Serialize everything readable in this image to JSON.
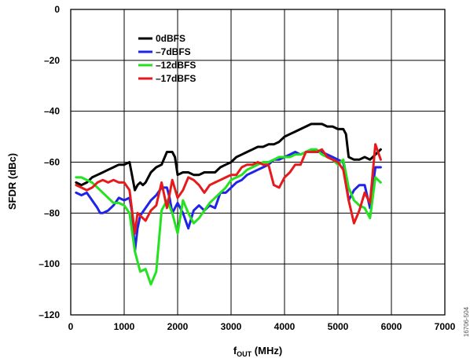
{
  "chart_data": {
    "type": "line",
    "xlabel": "f",
    "xlabel_sub": "OUT",
    "xlabel_unit": " (MHz)",
    "ylabel": "SFDR (dBc)",
    "xlim": [
      0,
      7000
    ],
    "ylim": [
      -120,
      0
    ],
    "xticks": [
      0,
      1000,
      2000,
      3000,
      4000,
      5000,
      6000,
      7000
    ],
    "yticks": [
      0,
      -20,
      -40,
      -60,
      -80,
      -100,
      -120
    ],
    "ytick_labels": [
      "0",
      "–20",
      "–40",
      "–60",
      "–80",
      "–100",
      "–120"
    ],
    "grid": true,
    "legend_position": "top-left",
    "figure_code": "16706-504",
    "series": [
      {
        "name": "0dBFS",
        "color": "#000000",
        "x": [
          100,
          200,
          300,
          400,
          500,
          600,
          700,
          800,
          900,
          1000,
          1100,
          1200,
          1250,
          1300,
          1350,
          1400,
          1500,
          1600,
          1700,
          1800,
          1900,
          1950,
          2000,
          2100,
          2200,
          2300,
          2400,
          2500,
          2600,
          2700,
          2800,
          2900,
          3000,
          3100,
          3200,
          3300,
          3400,
          3500,
          3600,
          3700,
          3800,
          3900,
          4000,
          4100,
          4200,
          4300,
          4400,
          4500,
          4600,
          4700,
          4800,
          4900,
          5000,
          5100,
          5150,
          5200,
          5300,
          5400,
          5500,
          5600,
          5700,
          5800
        ],
        "y": [
          -68,
          -69,
          -68,
          -66,
          -65,
          -64,
          -63,
          -62,
          -61,
          -61,
          -60,
          -71,
          -69,
          -68,
          -69,
          -68,
          -64,
          -62,
          -61,
          -56,
          -56,
          -58,
          -65,
          -64,
          -64,
          -65,
          -65,
          -64,
          -64,
          -64,
          -62,
          -61,
          -60,
          -58,
          -57,
          -56,
          -55,
          -54,
          -54,
          -53,
          -53,
          -52,
          -50,
          -49,
          -48,
          -47,
          -46,
          -45,
          -45,
          -45,
          -46,
          -46,
          -47,
          -47,
          -49,
          -58,
          -59,
          -59,
          -58,
          -59,
          -57,
          -55
        ]
      },
      {
        "name": "–7dBFS",
        "color": "#1f24e6",
        "x": [
          100,
          200,
          300,
          400,
          500,
          550,
          600,
          700,
          800,
          900,
          1000,
          1100,
          1150,
          1200,
          1250,
          1300,
          1400,
          1500,
          1600,
          1700,
          1800,
          1850,
          1900,
          2000,
          2100,
          2200,
          2300,
          2400,
          2500,
          2600,
          2700,
          2800,
          2900,
          3000,
          3100,
          3200,
          3300,
          3400,
          3500,
          3600,
          3700,
          3800,
          3900,
          4000,
          4100,
          4200,
          4300,
          4400,
          4500,
          4600,
          4700,
          4800,
          4900,
          5000,
          5100,
          5200,
          5300,
          5400,
          5500,
          5600,
          5700,
          5800
        ],
        "y": [
          -72,
          -73,
          -72,
          -75,
          -78,
          -80,
          -80,
          -79,
          -77,
          -74,
          -75,
          -74,
          -80,
          -95,
          -86,
          -81,
          -78,
          -75,
          -73,
          -70,
          -70,
          -74,
          -80,
          -76,
          -80,
          -86,
          -79,
          -77,
          -79,
          -77,
          -78,
          -72,
          -72,
          -70,
          -68,
          -67,
          -65,
          -64,
          -63,
          -62,
          -61,
          -59,
          -59,
          -58,
          -57,
          -56,
          -57,
          -56,
          -55,
          -56,
          -56,
          -57,
          -58,
          -59,
          -60,
          -75,
          -71,
          -69,
          -69,
          -78,
          -62,
          -62
        ]
      },
      {
        "name": "–12dBFS",
        "color": "#23e21f",
        "x": [
          100,
          200,
          300,
          400,
          500,
          600,
          700,
          800,
          900,
          1000,
          1100,
          1200,
          1300,
          1400,
          1500,
          1600,
          1700,
          1800,
          1900,
          2000,
          2100,
          2200,
          2300,
          2400,
          2500,
          2600,
          2700,
          2800,
          2900,
          3000,
          3100,
          3200,
          3300,
          3400,
          3500,
          3600,
          3700,
          3800,
          3900,
          4000,
          4100,
          4200,
          4300,
          4400,
          4500,
          4600,
          4700,
          4800,
          4900,
          5000,
          5100,
          5200,
          5300,
          5400,
          5500,
          5600,
          5700,
          5800
        ],
        "y": [
          -66,
          -66,
          -67,
          -68,
          -70,
          -72,
          -74,
          -76,
          -76,
          -77,
          -80,
          -95,
          -103,
          -102,
          -108,
          -103,
          -79,
          -75,
          -80,
          -88,
          -75,
          -80,
          -84,
          -82,
          -79,
          -76,
          -74,
          -72,
          -70,
          -67,
          -66,
          -65,
          -63,
          -62,
          -61,
          -60,
          -60,
          -59,
          -58,
          -58,
          -58,
          -57,
          -57,
          -56,
          -55,
          -55,
          -57,
          -58,
          -59,
          -61,
          -59,
          -70,
          -75,
          -77,
          -78,
          -82,
          -66,
          -68
        ]
      },
      {
        "name": "–17dBFS",
        "color": "#e61a1a",
        "x": [
          100,
          200,
          300,
          400,
          500,
          600,
          700,
          800,
          900,
          1000,
          1100,
          1200,
          1250,
          1300,
          1400,
          1500,
          1600,
          1700,
          1800,
          1900,
          2000,
          2100,
          2200,
          2300,
          2400,
          2500,
          2600,
          2700,
          2800,
          2900,
          3000,
          3100,
          3200,
          3300,
          3400,
          3500,
          3600,
          3700,
          3800,
          3900,
          4000,
          4100,
          4200,
          4300,
          4400,
          4500,
          4600,
          4700,
          4800,
          4900,
          5000,
          5100,
          5200,
          5300,
          5400,
          5500,
          5600,
          5700,
          5800
        ],
        "y": [
          -69,
          -70,
          -71,
          -70,
          -68,
          -67,
          -68,
          -67,
          -68,
          -68,
          -71,
          -88,
          -80,
          -81,
          -83,
          -79,
          -77,
          -68,
          -78,
          -67,
          -74,
          -71,
          -66,
          -67,
          -69,
          -72,
          -69,
          -68,
          -67,
          -66,
          -65,
          -65,
          -62,
          -61,
          -61,
          -60,
          -61,
          -61,
          -69,
          -70,
          -66,
          -64,
          -61,
          -61,
          -56,
          -56,
          -56,
          -55,
          -58,
          -59,
          -60,
          -63,
          -75,
          -84,
          -79,
          -72,
          -76,
          -53,
          -59
        ]
      }
    ]
  }
}
